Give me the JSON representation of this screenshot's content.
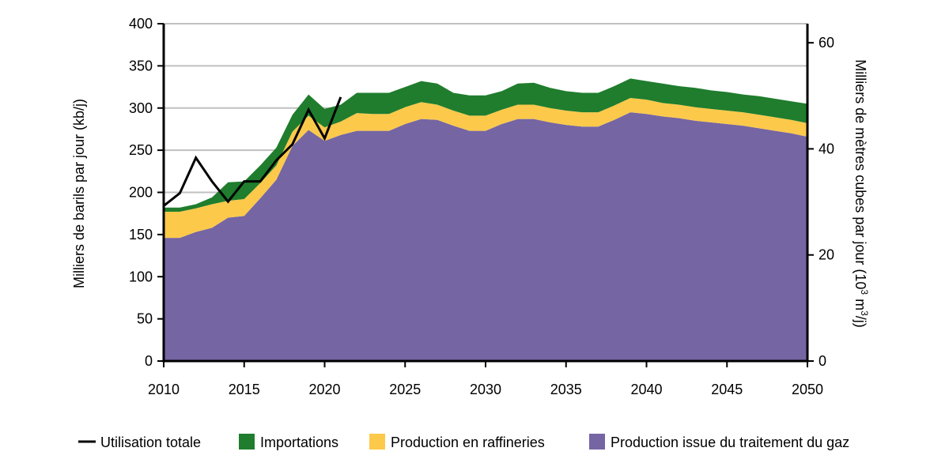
{
  "chart_data": {
    "type": "area",
    "x": [
      2010,
      2011,
      2012,
      2013,
      2014,
      2015,
      2016,
      2017,
      2018,
      2019,
      2020,
      2021,
      2022,
      2023,
      2024,
      2025,
      2026,
      2027,
      2028,
      2029,
      2030,
      2031,
      2032,
      2033,
      2034,
      2035,
      2036,
      2037,
      2038,
      2039,
      2040,
      2041,
      2042,
      2043,
      2044,
      2045,
      2046,
      2047,
      2048,
      2049,
      2050
    ],
    "series": [
      {
        "name": "Production issue du traitement du gaz",
        "color": "#7565a3",
        "values": [
          146,
          146,
          153,
          158,
          170,
          172,
          193,
          215,
          255,
          274,
          261,
          268,
          273,
          273,
          273,
          281,
          287,
          286,
          279,
          273,
          273,
          281,
          287,
          287,
          283,
          280,
          278,
          278,
          286,
          295,
          293,
          290,
          288,
          285,
          283,
          281,
          279,
          276,
          273,
          270,
          266
        ]
      },
      {
        "name": "Production en raffineries",
        "color": "#fcc94b",
        "values": [
          31,
          31,
          28,
          28,
          20,
          20,
          18,
          17,
          17,
          17,
          16,
          16,
          21,
          20,
          20,
          20,
          20,
          18,
          18,
          18,
          18,
          17,
          17,
          17,
          17,
          17,
          17,
          17,
          17,
          17,
          17,
          16,
          16,
          16,
          16,
          16,
          16,
          16,
          16,
          16,
          16
        ]
      },
      {
        "name": "Importations",
        "color": "#1f7d2d",
        "values": [
          5,
          5,
          5,
          8,
          22,
          21,
          21,
          21,
          20,
          25,
          22,
          20,
          24,
          25,
          25,
          24,
          25,
          25,
          21,
          24,
          24,
          22,
          25,
          26,
          24,
          23,
          23,
          23,
          23,
          23,
          22,
          23,
          22,
          23,
          22,
          22,
          21,
          22,
          22,
          22,
          23
        ]
      }
    ],
    "line": {
      "name": "Utilisation totale",
      "color": "#000000",
      "x": [
        2010,
        2011,
        2012,
        2013,
        2014,
        2015,
        2016,
        2017,
        2018,
        2019,
        2020,
        2021
      ],
      "values": [
        184,
        199,
        241,
        213,
        189,
        213,
        213,
        238,
        257,
        298,
        264,
        313
      ]
    },
    "xlim": [
      2010,
      2050
    ],
    "ylim": [
      0,
      400
    ],
    "x_ticks": [
      "2010",
      "2015",
      "2020",
      "2025",
      "2030",
      "2035",
      "2040",
      "2045",
      "2050"
    ],
    "y_ticks": [
      "0",
      "50",
      "100",
      "150",
      "200",
      "250",
      "300",
      "350",
      "400"
    ],
    "y2_ticks": [
      "0",
      "20",
      "40",
      "60"
    ],
    "y2_tick_values": [
      0,
      20,
      40,
      60
    ],
    "y2_per_y": 0.158987,
    "ylabel": "Milliers de barils par jour (kb/j)",
    "y2label_parts": [
      "Milliers de mètres cubes par jour (10",
      "3",
      " m",
      "3",
      "/j)"
    ],
    "grid": "horizontal",
    "legend_position": "bottom",
    "legend": [
      "Utilisation totale",
      "Importations",
      "Production en raffineries",
      "Production issue du traitement du gaz"
    ]
  }
}
